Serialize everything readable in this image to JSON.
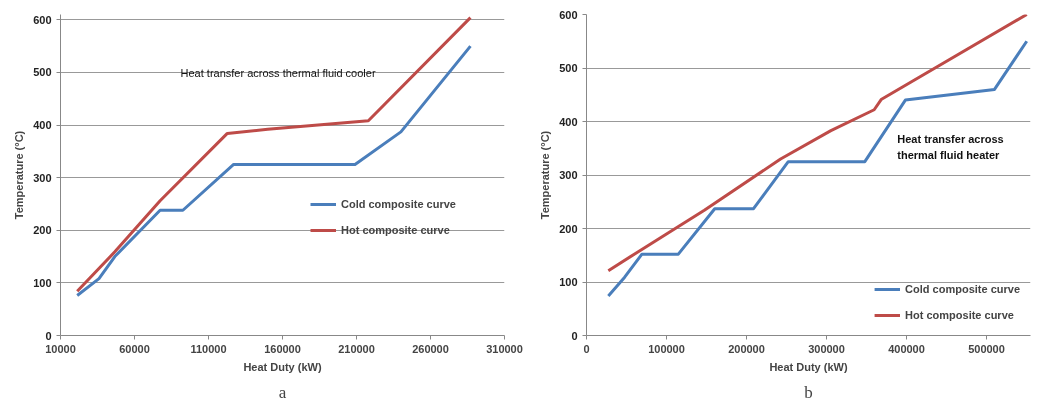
{
  "chart_data": [
    {
      "type": "line",
      "xlabel": "Heat Duty (kW)",
      "ylabel": "Temperature (°C)",
      "xlim": [
        10000,
        310000
      ],
      "xticks": [
        10000,
        60000,
        110000,
        160000,
        210000,
        260000,
        310000
      ],
      "ylim": [
        0,
        610
      ],
      "yticks": [
        0,
        100,
        200,
        300,
        400,
        500,
        600
      ],
      "grid": "y",
      "legend": "right",
      "marker": "none",
      "series": [
        {
          "name": "Cold composite curve",
          "color": "#4a7ebb",
          "x": [
            21300,
            36000,
            46700,
            77300,
            92700,
            127000,
            209000,
            240000,
            287000
          ],
          "values": [
            76,
            108,
            150,
            238,
            238,
            325,
            325,
            387,
            550
          ]
        },
        {
          "name": "Hot composite curve",
          "color": "#be4b48",
          "x": [
            21300,
            46700,
            77300,
            122700,
            150000,
            218000,
            287000
          ],
          "values": [
            84,
            159,
            256,
            384,
            392,
            408,
            604
          ]
        }
      ],
      "annotations": [
        "Heat transfer across thermal fluid cooler",
        "a"
      ]
    },
    {
      "type": "line",
      "xlabel": "Heat Duty (kW)",
      "ylabel": "Temperature (°C)",
      "xlim": [
        0,
        555000
      ],
      "xticks": [
        0,
        100000,
        200000,
        300000,
        400000,
        500000
      ],
      "ylim": [
        0,
        600
      ],
      "yticks": [
        0,
        100,
        200,
        300,
        400,
        500,
        600
      ],
      "grid": "y",
      "legend": "bottom right",
      "marker": "none",
      "series": [
        {
          "name": "Cold composite curve",
          "color": "#4a7ebb",
          "x": [
            27300,
            47700,
            69300,
            114800,
            160300,
            208800,
            252200,
            347900,
            398600,
            510000,
            550300
          ],
          "values": [
            74,
            109,
            152,
            152,
            237,
            237,
            325,
            325,
            440,
            460,
            550
          ]
        },
        {
          "name": "Hot composite curve",
          "color": "#be4b48",
          "x": [
            27300,
            60700,
            147300,
            242600,
            305500,
            359600,
            368300,
            550300
          ],
          "values": [
            121,
            153,
            234,
            330,
            383,
            422,
            441,
            600
          ]
        }
      ],
      "annotations": [
        "Heat transfer across\nthermal fluid heater",
        "b"
      ]
    }
  ]
}
